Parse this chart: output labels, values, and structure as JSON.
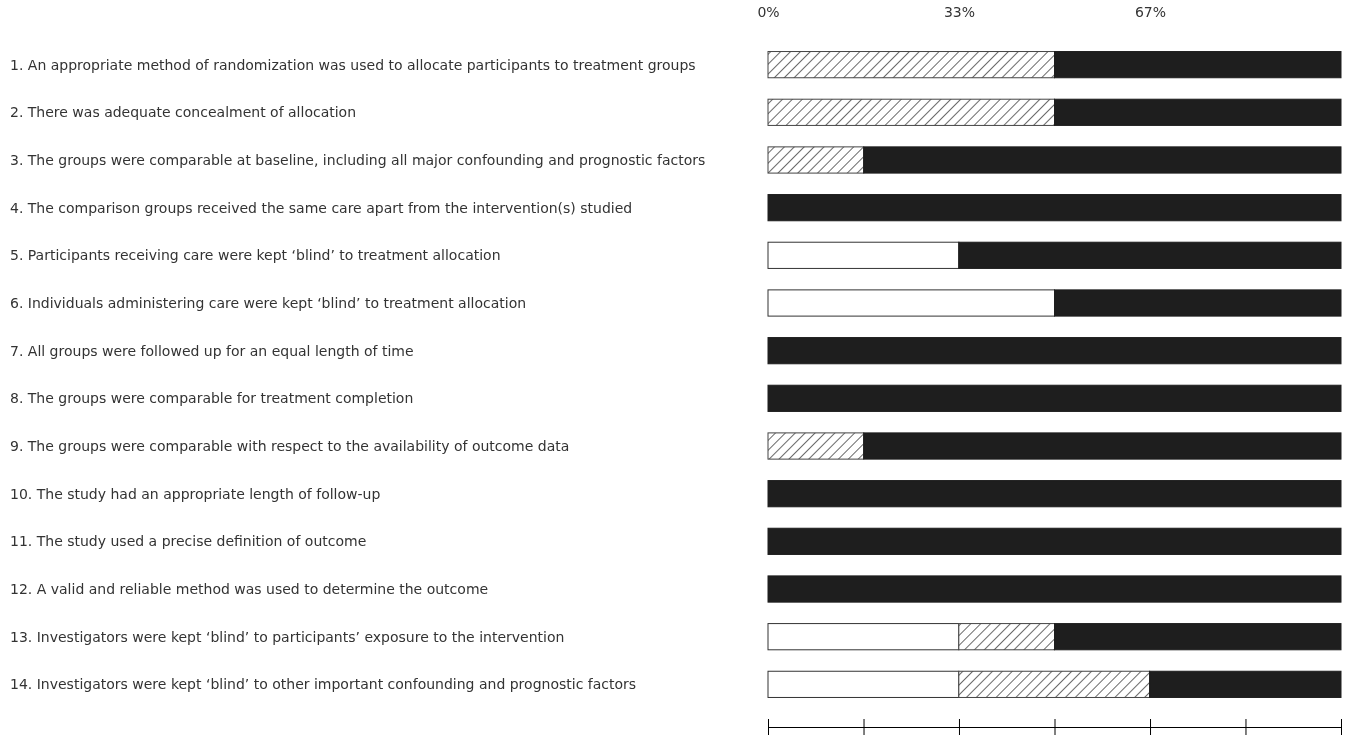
{
  "chart_data": {
    "type": "bar",
    "orientation": "horizontal",
    "stacked": true,
    "categories": [
      "1. An appropriate method of randomization was used to allocate participants to treatment groups",
      "2. There was adequate concealment of allocation",
      "3. The groups were comparable at baseline, including all major confounding and prognostic factors",
      "4. The comparison groups received the same care apart from the intervention(s) studied",
      "5. Participants receiving care were kept ‘blind’ to treatment allocation",
      "6. Individuals administering care were kept ‘blind’ to treatment allocation",
      "7. All groups were followed up for an equal length of time",
      "8. The groups were comparable for treatment completion",
      "9. The groups were comparable with respect to the availability of outcome data",
      "10. The study had an appropriate length of follow-up",
      "11. The study used a precise definition of outcome",
      "12. A valid and reliable method was used to determine the outcome",
      "13. Investigators were kept ‘blind’ to participants’ exposure to the intervention",
      "14. Investigators were kept ‘blind’ to other important confounding and prognostic factors"
    ],
    "series": [
      {
        "color": "#ffffff",
        "values": [
          0,
          0,
          0,
          0,
          33.3,
          50,
          0,
          0,
          0,
          0,
          0,
          0,
          33.3,
          33.3
        ]
      },
      {
        "color": "#444444",
        "values": [
          50,
          50,
          16.7,
          0,
          0,
          0,
          0,
          0,
          16.7,
          0,
          0,
          0,
          16.7,
          33.3
        ]
      },
      {
        "color": "#1e1e1e",
        "values": [
          50,
          50,
          83.3,
          100,
          66.7,
          50,
          100,
          100,
          83.3,
          100,
          100,
          100,
          50,
          33.4
        ]
      }
    ],
    "xlim": [
      0,
      100
    ],
    "xticks": [
      {
        "value": 0,
        "label": "0%"
      },
      {
        "value": 16.67,
        "label": null
      },
      {
        "value": 33.33,
        "label": "33%"
      },
      {
        "value": 50,
        "label": null
      },
      {
        "value": 66.67,
        "label": "67%"
      },
      {
        "value": 83.33,
        "label": null
      },
      {
        "value": 100,
        "label": null
      }
    ],
    "grid": false
  }
}
